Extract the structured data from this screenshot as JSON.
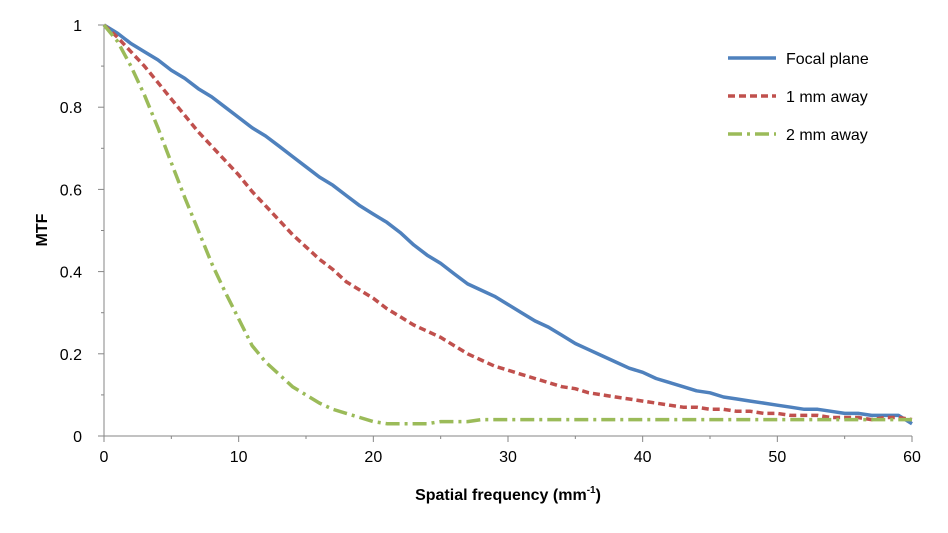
{
  "chart_data": {
    "type": "line",
    "title": "",
    "xlabel": "Spatial frequency (mm",
    "xlabel_superscript": "-1",
    "xlabel_suffix": ")",
    "ylabel": "MTF",
    "xlim": [
      0,
      60
    ],
    "ylim": [
      0,
      1
    ],
    "x_ticks": [
      0,
      10,
      20,
      30,
      40,
      50,
      60
    ],
    "y_ticks": [
      0,
      0.2,
      0.4,
      0.6,
      0.8,
      1
    ],
    "x_tick_labels": [
      "0",
      "10",
      "20",
      "30",
      "40",
      "50",
      "60"
    ],
    "y_tick_labels": [
      "0",
      "0.2",
      "0.4",
      "0.6",
      "0.8",
      "1"
    ],
    "grid": false,
    "legend_position": "top-right",
    "series": [
      {
        "name": "Focal plane",
        "color": "#4F81BD",
        "style": "solid",
        "x": [
          0,
          1,
          2,
          3,
          4,
          5,
          6,
          7,
          8,
          9,
          10,
          11,
          12,
          13,
          14,
          15,
          16,
          17,
          18,
          19,
          20,
          21,
          22,
          23,
          24,
          25,
          26,
          27,
          28,
          29,
          30,
          31,
          32,
          33,
          34,
          35,
          36,
          37,
          38,
          39,
          40,
          41,
          42,
          43,
          44,
          45,
          46,
          47,
          48,
          49,
          50,
          51,
          52,
          53,
          54,
          55,
          56,
          57,
          58,
          59,
          60
        ],
        "y": [
          1,
          0.98,
          0.955,
          0.935,
          0.915,
          0.89,
          0.87,
          0.845,
          0.825,
          0.8,
          0.775,
          0.75,
          0.73,
          0.705,
          0.68,
          0.655,
          0.63,
          0.61,
          0.585,
          0.56,
          0.54,
          0.52,
          0.495,
          0.465,
          0.44,
          0.42,
          0.395,
          0.37,
          0.355,
          0.34,
          0.32,
          0.3,
          0.28,
          0.265,
          0.245,
          0.225,
          0.21,
          0.195,
          0.18,
          0.165,
          0.155,
          0.14,
          0.13,
          0.12,
          0.11,
          0.105,
          0.095,
          0.09,
          0.085,
          0.08,
          0.075,
          0.07,
          0.065,
          0.065,
          0.06,
          0.055,
          0.055,
          0.05,
          0.05,
          0.05,
          0.03
        ]
      },
      {
        "name": "1 mm away",
        "color": "#C0504D",
        "style": "dashed",
        "x": [
          0,
          1,
          2,
          3,
          4,
          5,
          6,
          7,
          8,
          9,
          10,
          11,
          12,
          13,
          14,
          15,
          16,
          17,
          18,
          19,
          20,
          21,
          22,
          23,
          24,
          25,
          26,
          27,
          28,
          29,
          30,
          31,
          32,
          33,
          34,
          35,
          36,
          37,
          38,
          39,
          40,
          41,
          42,
          43,
          44,
          45,
          46,
          47,
          48,
          49,
          50,
          51,
          52,
          53,
          54,
          55,
          56,
          57,
          58,
          59,
          60
        ],
        "y": [
          1,
          0.97,
          0.935,
          0.9,
          0.86,
          0.82,
          0.78,
          0.74,
          0.705,
          0.67,
          0.635,
          0.595,
          0.56,
          0.525,
          0.49,
          0.46,
          0.43,
          0.405,
          0.375,
          0.355,
          0.335,
          0.31,
          0.29,
          0.27,
          0.255,
          0.24,
          0.22,
          0.2,
          0.185,
          0.17,
          0.16,
          0.15,
          0.14,
          0.13,
          0.12,
          0.115,
          0.105,
          0.1,
          0.095,
          0.09,
          0.085,
          0.08,
          0.075,
          0.07,
          0.07,
          0.065,
          0.065,
          0.06,
          0.06,
          0.055,
          0.055,
          0.05,
          0.05,
          0.05,
          0.045,
          0.045,
          0.045,
          0.04,
          0.045,
          0.045,
          0.04
        ]
      },
      {
        "name": "2 mm away",
        "color": "#9BBB59",
        "style": "dashdot",
        "x": [
          0,
          1,
          2,
          3,
          4,
          5,
          6,
          7,
          8,
          9,
          10,
          11,
          12,
          13,
          14,
          15,
          16,
          17,
          18,
          19,
          20,
          21,
          22,
          23,
          24,
          25,
          26,
          27,
          28,
          29,
          30,
          31,
          32,
          33,
          34,
          35,
          36,
          37,
          38,
          39,
          40,
          41,
          42,
          43,
          44,
          45,
          46,
          47,
          48,
          49,
          50,
          51,
          52,
          53,
          54,
          55,
          56,
          57,
          58,
          59,
          60
        ],
        "y": [
          1,
          0.96,
          0.9,
          0.83,
          0.75,
          0.665,
          0.58,
          0.5,
          0.42,
          0.35,
          0.285,
          0.22,
          0.18,
          0.15,
          0.12,
          0.1,
          0.08,
          0.065,
          0.055,
          0.045,
          0.035,
          0.03,
          0.03,
          0.03,
          0.03,
          0.035,
          0.035,
          0.035,
          0.04,
          0.04,
          0.04,
          0.04,
          0.04,
          0.04,
          0.04,
          0.04,
          0.04,
          0.04,
          0.04,
          0.04,
          0.04,
          0.04,
          0.04,
          0.04,
          0.04,
          0.04,
          0.04,
          0.04,
          0.04,
          0.04,
          0.04,
          0.04,
          0.04,
          0.04,
          0.04,
          0.04,
          0.04,
          0.04,
          0.04,
          0.04,
          0.04
        ]
      }
    ]
  }
}
